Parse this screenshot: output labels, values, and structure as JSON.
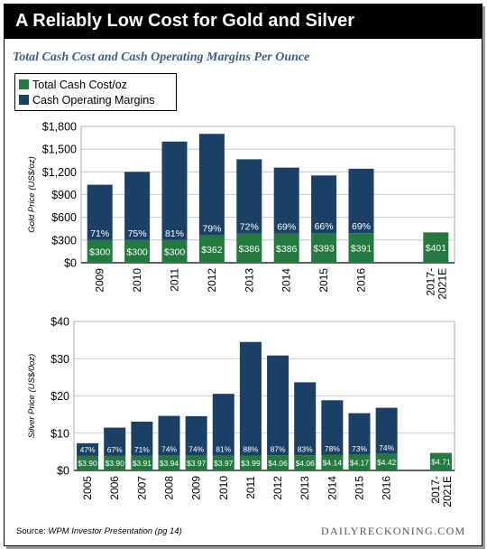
{
  "header": {
    "title": "A Reliably Low Cost for Gold and Silver"
  },
  "subtitle": "Total Cash Cost and Cash Operating Margins Per Ounce",
  "legend": {
    "items": [
      {
        "label": "Total Cash Cost/oz",
        "color": "#23793e"
      },
      {
        "label": "Cash Operating Margins",
        "color": "#1a4066"
      }
    ]
  },
  "footer": {
    "source_lead": "Source:",
    "source_rest": "WPM Investor Presentation (pg 14)",
    "brand": "DAILYRECKONING.COM"
  },
  "colors": {
    "cost": "#23793e",
    "margin": "#1a4066",
    "gridline": "#bfbfbf",
    "axis": "#000000"
  },
  "chart_data": [
    {
      "type": "bar",
      "stacked": true,
      "ylabel": "Gold Price (US$/oz)",
      "ylim": [
        0,
        1800
      ],
      "yticks": [
        "$0",
        "$300",
        "$600",
        "$900",
        "$1,200",
        "$1,500",
        "$1,800"
      ],
      "ytick_values": [
        0,
        300,
        600,
        900,
        1200,
        1500,
        1800
      ],
      "categories": [
        "2009",
        "2010",
        "2011",
        "2012",
        "2013",
        "2014",
        "2015",
        "2016",
        "",
        "2017-2021E"
      ],
      "category_lines": [
        [
          "2009"
        ],
        [
          "2010"
        ],
        [
          "2011"
        ],
        [
          "2012"
        ],
        [
          "2013"
        ],
        [
          "2014"
        ],
        [
          "2015"
        ],
        [
          "2016"
        ],
        [],
        [
          "2017-",
          "2021E"
        ]
      ],
      "series": [
        {
          "name": "Total Cash Cost/oz",
          "values": [
            300,
            300,
            300,
            362,
            386,
            386,
            393,
            391,
            null,
            401
          ],
          "labels": [
            "$300",
            "$300",
            "$300",
            "$362",
            "$386",
            "$386",
            "$393",
            "$391",
            "",
            "$401"
          ]
        },
        {
          "name": "Cash Operating Margins",
          "values": [
            730,
            900,
            1300,
            1340,
            980,
            870,
            760,
            850,
            null,
            null
          ],
          "labels": [
            "71%",
            "75%",
            "81%",
            "79%",
            "72%",
            "69%",
            "66%",
            "69%",
            "",
            ""
          ]
        }
      ],
      "grid": true
    },
    {
      "type": "bar",
      "stacked": true,
      "ylabel": "Silver Price (US$/0oz)",
      "ylim": [
        0,
        40
      ],
      "yticks": [
        "$0",
        "$10",
        "$20",
        "$30",
        "$40"
      ],
      "ytick_values": [
        0,
        10,
        20,
        30,
        40
      ],
      "categories": [
        "2005",
        "2006",
        "2007",
        "2008",
        "2009",
        "2010",
        "2011",
        "2012",
        "2013",
        "2014",
        "2015",
        "2016",
        "",
        "2017-2021E"
      ],
      "category_lines": [
        [
          "2005"
        ],
        [
          "2006"
        ],
        [
          "2007"
        ],
        [
          "2008"
        ],
        [
          "2009"
        ],
        [
          "2010"
        ],
        [
          "2011"
        ],
        [
          "2012"
        ],
        [
          "2013"
        ],
        [
          "2014"
        ],
        [
          "2015"
        ],
        [
          "2016"
        ],
        [],
        [
          "2017-",
          "2021E"
        ]
      ],
      "series": [
        {
          "name": "Total Cash Cost/oz",
          "values": [
            3.9,
            3.9,
            3.91,
            3.94,
            3.97,
            3.97,
            3.99,
            4.06,
            4.06,
            4.14,
            4.17,
            4.42,
            null,
            4.71
          ],
          "labels": [
            "$3.90",
            "$3.90",
            "$3.91",
            "$3.94",
            "$3.97",
            "$3.97",
            "$3.99",
            "$4.06",
            "$4.06",
            "$4.14",
            "$4.17",
            "$4.42",
            "",
            "$4.71"
          ]
        },
        {
          "name": "Cash Operating Margins",
          "values": [
            3.4,
            7.6,
            9.2,
            10.7,
            10.6,
            16.6,
            30.5,
            26.8,
            19.6,
            14.7,
            11.2,
            12.4,
            null,
            null
          ],
          "labels": [
            "47%",
            "67%",
            "71%",
            "74%",
            "74%",
            "81%",
            "88%",
            "87%",
            "83%",
            "78%",
            "73%",
            "74%",
            "",
            ""
          ]
        }
      ],
      "grid": true
    }
  ]
}
